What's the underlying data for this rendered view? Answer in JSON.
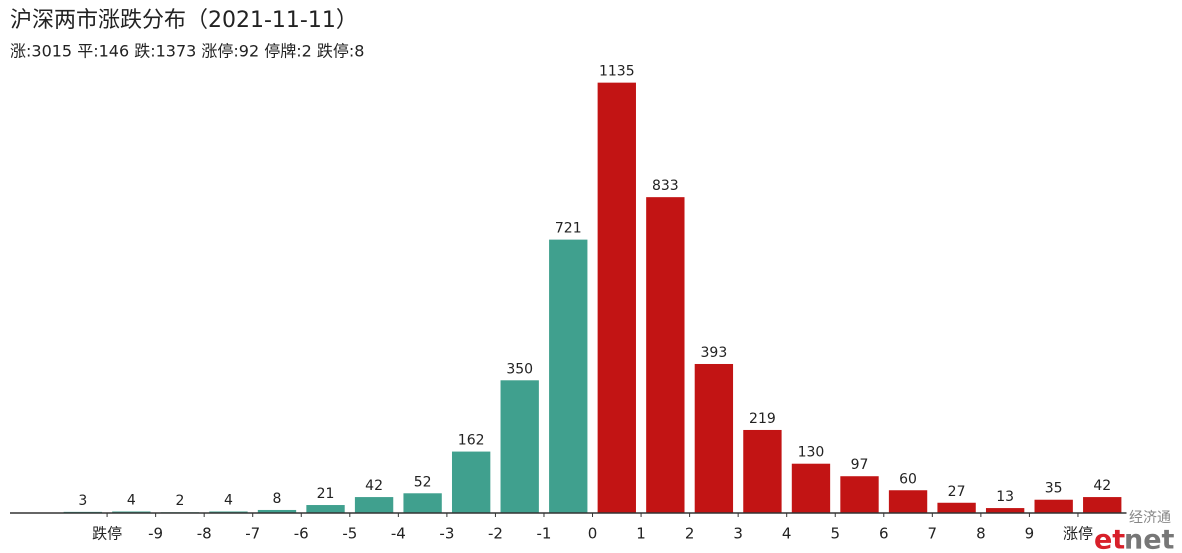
{
  "chart_data": {
    "type": "bar",
    "title": "沪深两市涨跌分布（2021-11-11）",
    "subtitle": "涨:3015 平:146 跌:1373 涨停:92 停牌:2 跌停:8",
    "x": [
      -10.5,
      -9.5,
      -8.5,
      -7.5,
      -6.5,
      -5.5,
      -4.5,
      -3.5,
      -2.5,
      -1.5,
      -0.5,
      0.5,
      1.5,
      2.5,
      3.5,
      4.5,
      5.5,
      6.5,
      7.5,
      8.5,
      9.5,
      10.5
    ],
    "values": [
      3,
      4,
      2,
      4,
      8,
      21,
      42,
      52,
      162,
      350,
      721,
      1135,
      833,
      393,
      219,
      130,
      97,
      60,
      27,
      13,
      35,
      42
    ],
    "colors": [
      "#40a08e",
      "#40a08e",
      "#40a08e",
      "#40a08e",
      "#40a08e",
      "#40a08e",
      "#40a08e",
      "#40a08e",
      "#40a08e",
      "#40a08e",
      "#40a08e",
      "#c21414",
      "#c21414",
      "#c21414",
      "#c21414",
      "#c21414",
      "#c21414",
      "#c21414",
      "#c21414",
      "#c21414",
      "#c21414",
      "#c21414"
    ],
    "xlim": [
      -12,
      11
    ],
    "xticks": [
      {
        "value": -10,
        "label": "跌停"
      },
      -9,
      -8,
      -7,
      -6,
      -5,
      -4,
      -3,
      -2,
      -1,
      0,
      1,
      2,
      3,
      4,
      5,
      6,
      7,
      8,
      9,
      {
        "value": 10,
        "label": "涨停"
      }
    ],
    "ylim": [
      0,
      1200
    ],
    "logo": {
      "cn": "经济通",
      "en_red": "et",
      "en_gray": "net"
    }
  }
}
